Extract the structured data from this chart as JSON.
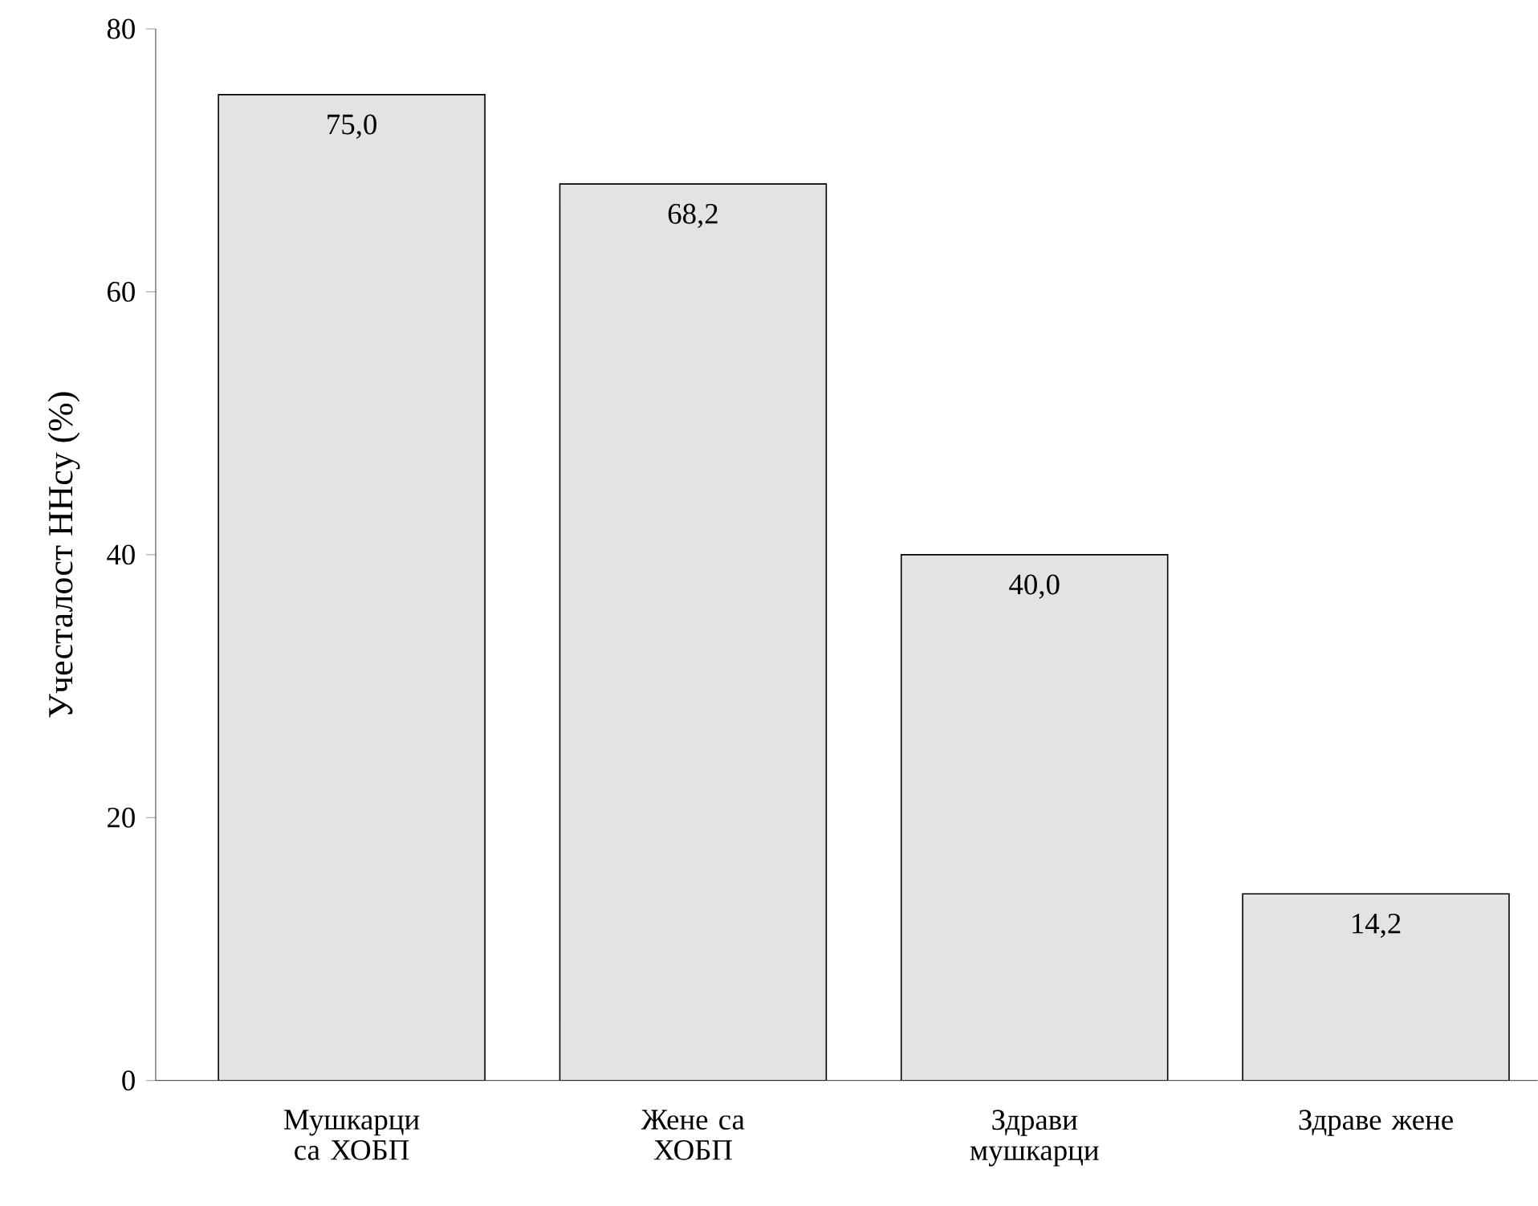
{
  "chart_data": {
    "type": "bar",
    "ylabel": "Учесталост  HHcy (%)",
    "categories": [
      "Мушкарци са ХОБП",
      "Жене са ХОБП",
      "Здрави мушкарци",
      "Здраве жене"
    ],
    "values": [
      75.0,
      68.2,
      40.0,
      14.2
    ],
    "value_labels": [
      "75,0",
      "68,2",
      "40,0",
      "14,2"
    ],
    "color": "#e3e3e3",
    "ylim": [
      0,
      80
    ],
    "yticks": [
      0,
      20,
      40,
      60,
      80
    ],
    "grid": false
  }
}
